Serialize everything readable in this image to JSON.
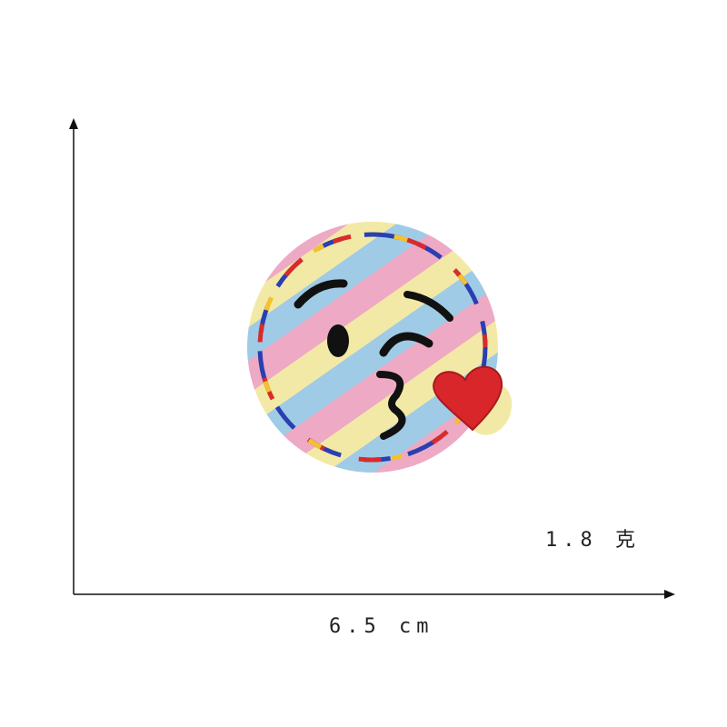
{
  "labels": {
    "weight": "1.8 克",
    "width": "6.5 cm"
  },
  "patch": {
    "subject": "blowing-kiss-emoji-embroidered-patch",
    "stripe_colors": [
      "#f3e9a6",
      "#9fcbe6",
      "#eea9c4"
    ],
    "border_colors": [
      "#d92b2b",
      "#2a3fb0",
      "#f2c230",
      "#2e9a4a"
    ],
    "heart_color": "#d8262b"
  },
  "colors": {
    "axis": "#111111",
    "background": "#ffffff"
  }
}
